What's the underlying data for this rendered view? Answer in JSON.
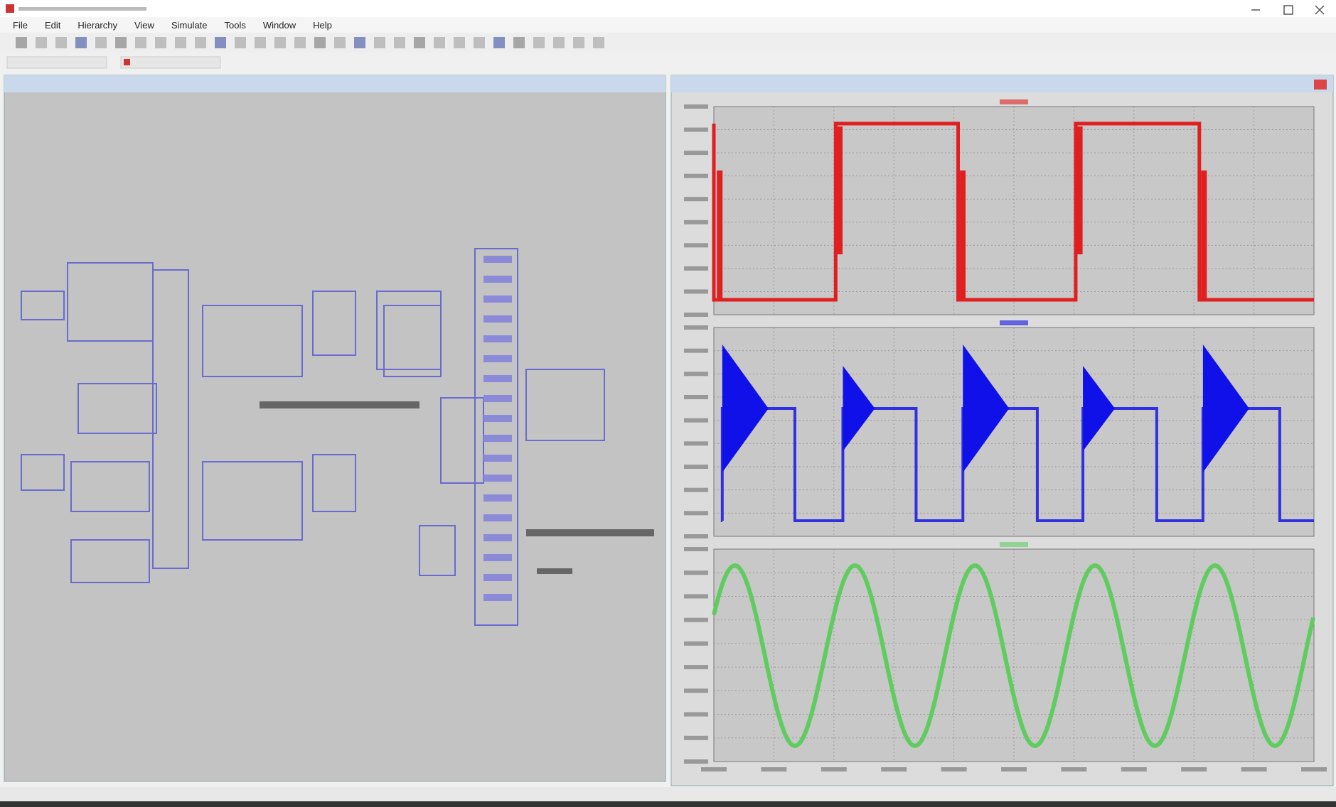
{
  "menu": [
    "File",
    "Edit",
    "Hierarchy",
    "View",
    "Simulate",
    "Tools",
    "Window",
    "Help"
  ]
}
